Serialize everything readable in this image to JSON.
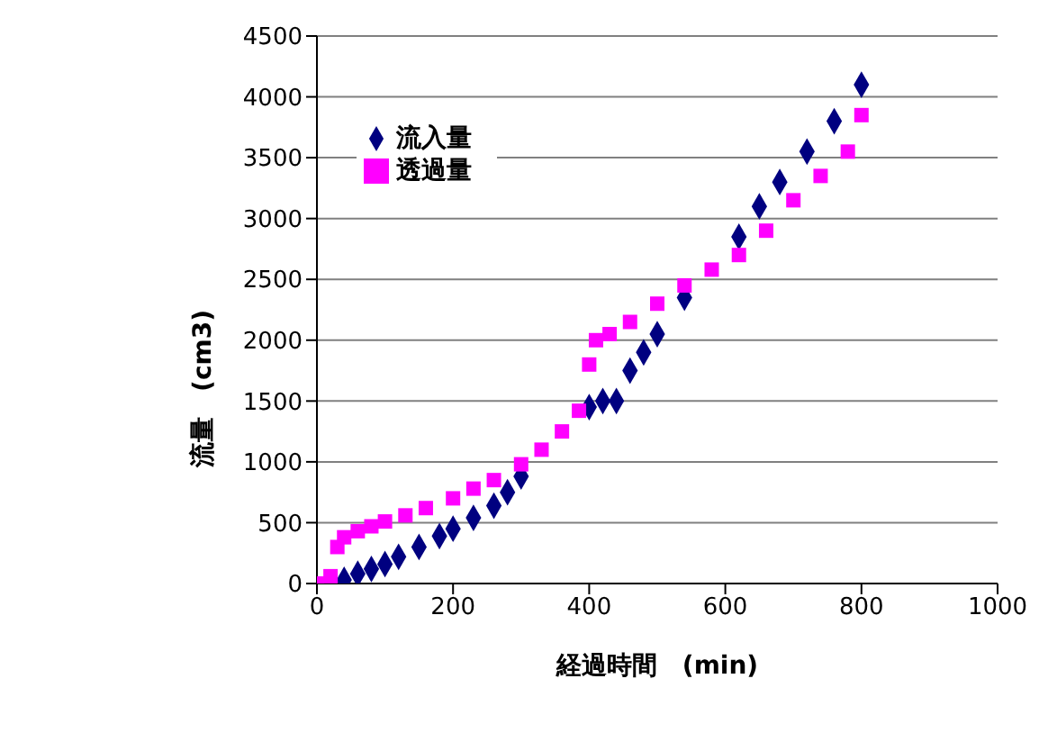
{
  "chart_data": {
    "type": "scatter",
    "xlabel": "経過時間　(min)",
    "ylabel": "流量　(cm3)",
    "xlim": [
      0,
      1000
    ],
    "xticks": [
      0,
      200,
      400,
      600,
      800,
      1000
    ],
    "ylim": [
      0,
      4500
    ],
    "yticks": [
      0,
      500,
      1000,
      1500,
      2000,
      2500,
      3000,
      3500,
      4000,
      4500
    ],
    "grid": "y",
    "legend": "top left",
    "series": [
      {
        "name": "流入量",
        "color": "#000080",
        "marker": "diamond",
        "x": [
          40,
          60,
          80,
          100,
          120,
          150,
          180,
          200,
          230,
          260,
          280,
          300,
          330,
          360,
          400,
          420,
          440,
          460,
          480,
          500,
          540,
          580,
          620,
          650,
          680,
          720,
          760,
          800
        ],
        "values": [
          30,
          80,
          120,
          160,
          220,
          300,
          390,
          450,
          540,
          640,
          750,
          880,
          null,
          null,
          1450,
          1500,
          1500,
          1750,
          1900,
          2050,
          2350,
          null,
          2850,
          3100,
          3300,
          3550,
          3800,
          4100
        ]
      },
      {
        "name": "透過量",
        "color": "#ff00ff",
        "marker": "square",
        "x": [
          0,
          20,
          30,
          40,
          60,
          80,
          100,
          130,
          160,
          200,
          230,
          260,
          300,
          330,
          360,
          385,
          400,
          410,
          430,
          460,
          500,
          540,
          580,
          620,
          660,
          700,
          740,
          780,
          800
        ],
        "values": [
          0,
          60,
          300,
          380,
          430,
          470,
          510,
          560,
          620,
          700,
          780,
          850,
          980,
          1100,
          1250,
          1420,
          1800,
          2000,
          2050,
          2150,
          2300,
          2450,
          2580,
          2700,
          2900,
          3150,
          3350,
          3550,
          3850
        ]
      }
    ]
  }
}
